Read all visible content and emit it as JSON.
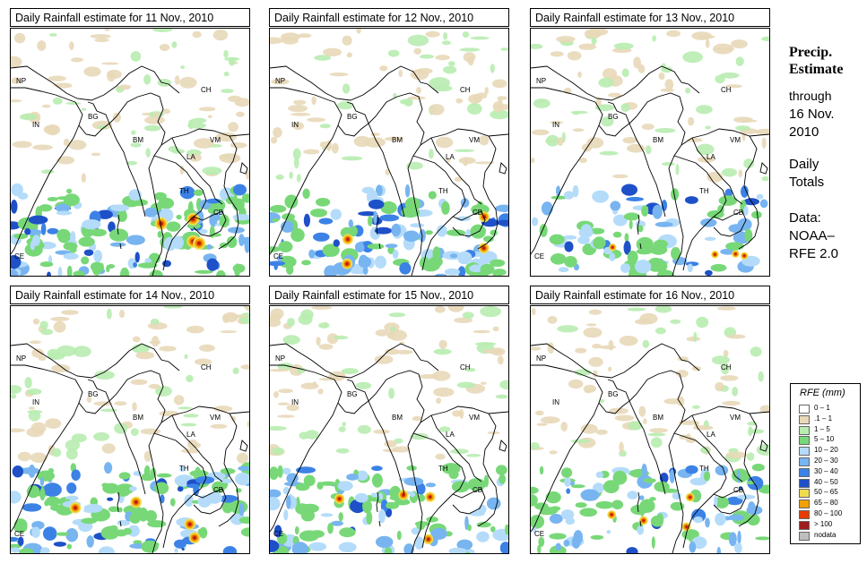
{
  "panels": [
    {
      "title": "Daily Rainfall estimate for  11 Nov., 2010",
      "seed": 11,
      "intensity": 1.0
    },
    {
      "title": "Daily Rainfall estimate for  12 Nov., 2010",
      "seed": 12,
      "intensity": 0.85
    },
    {
      "title": "Daily Rainfall estimate for  13 Nov., 2010",
      "seed": 13,
      "intensity": 0.6
    },
    {
      "title": "Daily Rainfall estimate for  14 Nov., 2010",
      "seed": 14,
      "intensity": 0.9
    },
    {
      "title": "Daily Rainfall estimate for  15 Nov., 2010",
      "seed": 15,
      "intensity": 0.8
    },
    {
      "title": "Daily Rainfall estimate for  16 Nov., 2010",
      "seed": 16,
      "intensity": 0.7
    }
  ],
  "country_labels": [
    {
      "code": "NP"
    },
    {
      "code": "CH"
    },
    {
      "code": "IN"
    },
    {
      "code": "BG"
    },
    {
      "code": "BM"
    },
    {
      "code": "VM"
    },
    {
      "code": "LA"
    },
    {
      "code": "TH"
    },
    {
      "code": "CB"
    },
    {
      "code": "CE"
    }
  ],
  "side": {
    "title1": "Precip.",
    "title2": "Estimate",
    "through": "through",
    "date1": "16 Nov.",
    "date2": "2010",
    "daily": "Daily",
    "totals": "Totals",
    "data_label": "Data:",
    "source1": "NOAA–",
    "source2": "RFE 2.0"
  },
  "legend": {
    "title": "RFE (mm)",
    "items": [
      {
        "label": "0 – 1",
        "color": "#ffffff"
      },
      {
        "label": ".1 – 1",
        "color": "#e8d8b8"
      },
      {
        "label": "1 – 5",
        "color": "#b8ecb0"
      },
      {
        "label": "5 – 10",
        "color": "#78d878"
      },
      {
        "label": "10 – 20",
        "color": "#b4dcfa"
      },
      {
        "label": "20 – 30",
        "color": "#78b4f0"
      },
      {
        "label": "30 – 40",
        "color": "#3c82e6"
      },
      {
        "label": "40 – 50",
        "color": "#1e50c8"
      },
      {
        "label": "50 – 65",
        "color": "#f0dc50"
      },
      {
        "label": "65 – 80",
        "color": "#f0a000"
      },
      {
        "label": "80 – 100",
        "color": "#e63c00"
      },
      {
        "label": "> 100",
        "color": "#a01e1e"
      },
      {
        "label": "nodata",
        "color": "#bebebe"
      }
    ]
  }
}
